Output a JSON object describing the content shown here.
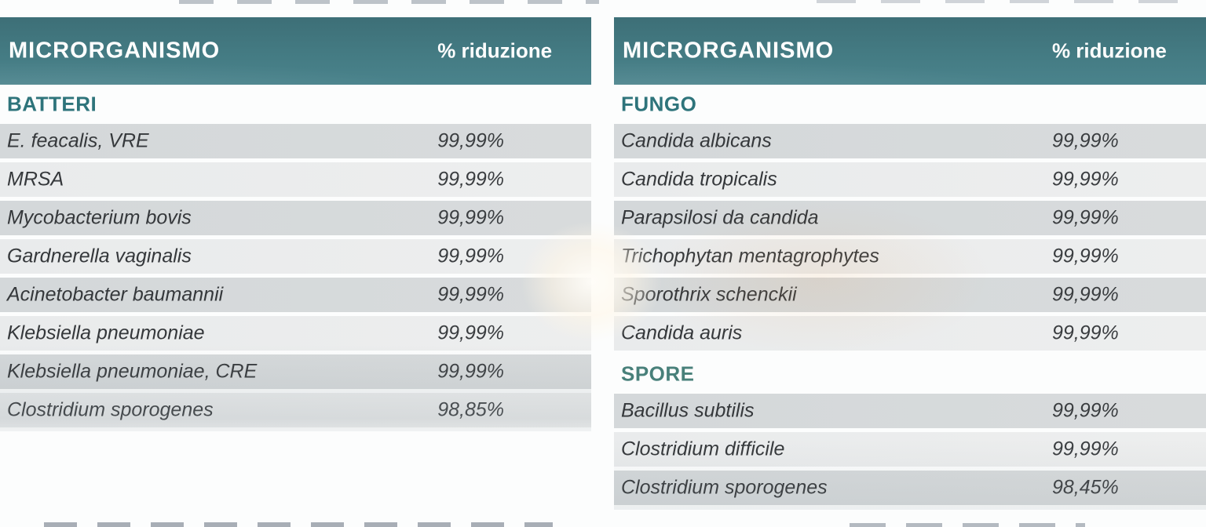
{
  "accent_teal": "#447b83",
  "chart_data": [
    {
      "type": "table",
      "header": {
        "col1": "MICRORGANISMO",
        "col2": "% riduzione"
      },
      "sections": [
        {
          "label": "BATTERI",
          "rows": [
            {
              "name": "E. feacalis, VRE",
              "value": "99,99%"
            },
            {
              "name": "MRSA",
              "value": "99,99%"
            },
            {
              "name": "Mycobacterium bovis",
              "value": "99,99%"
            },
            {
              "name": "Gardnerella vaginalis",
              "value": "99,99%"
            },
            {
              "name": "Acinetobacter baumannii",
              "value": "99,99%"
            },
            {
              "name": "Klebsiella pneumoniae",
              "value": "99,99%"
            },
            {
              "name": "Klebsiella pneumoniae, CRE",
              "value": "99,99%"
            },
            {
              "name": "Clostridium sporogenes",
              "value": "98,85%"
            }
          ]
        }
      ]
    },
    {
      "type": "table",
      "header": {
        "col1": "MICRORGANISMO",
        "col2": "% riduzione"
      },
      "sections": [
        {
          "label": "FUNGO",
          "rows": [
            {
              "name": "Candida albicans",
              "value": "99,99%"
            },
            {
              "name": "Candida tropicalis",
              "value": "99,99%"
            },
            {
              "name": "Parapsilosi da candida",
              "value": "99,99%"
            },
            {
              "name": "Trichophytan mentagrophytes",
              "value": "99,99%"
            },
            {
              "name": "Sporothrix schenckii",
              "value": "99,99%"
            },
            {
              "name": "Candida auris",
              "value": "99,99%"
            }
          ]
        },
        {
          "label": "SPORE",
          "rows": [
            {
              "name": "Bacillus subtilis",
              "value": "99,99%"
            },
            {
              "name": "Clostridium difficile",
              "value": "99,99%"
            },
            {
              "name": "Clostridium sporogenes",
              "value": "98,45%"
            }
          ]
        }
      ]
    }
  ]
}
